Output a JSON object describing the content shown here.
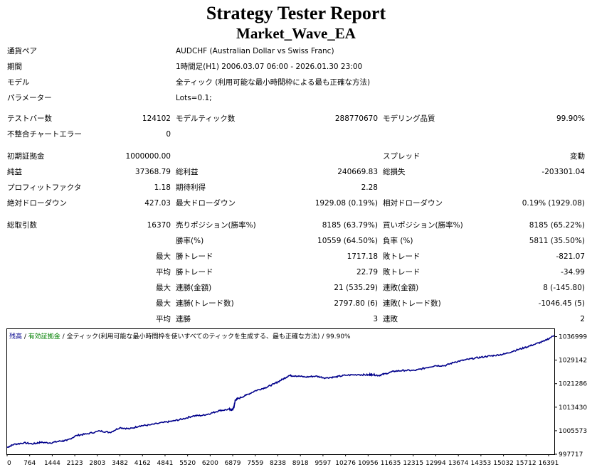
{
  "report": {
    "title": "Strategy Tester Report",
    "ea_name": "Market_Wave_EA"
  },
  "info": {
    "symbol_label": "通貨ペア",
    "symbol_value": "AUDCHF (Australian Dollar vs Swiss Franc)",
    "period_label": "期間",
    "period_value": "1時間足(H1) 2006.03.07 06:00 - 2026.01.30 23:00",
    "model_label": "モデル",
    "model_value": "全ティック (利用可能な最小時間枠による最も正確な方法)",
    "params_label": "パラメーター",
    "params_value": "Lots=0.1;"
  },
  "stats": {
    "bars_label": "テストバー数",
    "bars_value": "124102",
    "ticks_label": "モデルティック数",
    "ticks_value": "288770670",
    "quality_label": "モデリング品質",
    "quality_value": "99.90%",
    "mismatch_label": "不整合チャートエラー",
    "mismatch_value": "0",
    "deposit_label": "初期証拠金",
    "deposit_value": "1000000.00",
    "spread_label": "スプレッド",
    "spread_value": "変動",
    "net_label": "純益",
    "net_value": "37368.79",
    "gross_profit_label": "総利益",
    "gross_profit_value": "240669.83",
    "gross_loss_label": "総損失",
    "gross_loss_value": "-203301.04",
    "pf_label": "プロフィットファクタ",
    "pf_value": "1.18",
    "payoff_label": "期待利得",
    "payoff_value": "2.28",
    "abs_dd_label": "絶対ドローダウン",
    "abs_dd_value": "427.03",
    "max_dd_label": "最大ドローダウン",
    "max_dd_value": "1929.08 (0.19%)",
    "rel_dd_label": "相対ドローダウン",
    "rel_dd_value": "0.19% (1929.08)",
    "trades_label": "総取引数",
    "trades_value": "16370",
    "short_label": "売りポジション(勝率%)",
    "short_value": "8185 (63.79%)",
    "long_label": "買いポジション(勝率%)",
    "long_value": "8185 (65.22%)",
    "win_rate_label": "勝率(%)",
    "win_rate_value": "10559 (64.50%)",
    "loss_rate_label": "負率 (%)",
    "loss_rate_value": "5811 (35.50%)",
    "max_prefix": "最大",
    "avg_prefix": "平均",
    "largest_win_label": "勝トレード",
    "largest_win_value": "1717.18",
    "largest_loss_label": "敗トレード",
    "largest_loss_value": "-821.07",
    "avg_win_label": "勝トレード",
    "avg_win_value": "22.79",
    "avg_loss_label": "敗トレード",
    "avg_loss_value": "-34.99",
    "max_consec_win_label": "連勝(金額)",
    "max_consec_win_value": "21 (535.29)",
    "max_consec_loss_label": "連敗(金額)",
    "max_consec_loss_value": "8 (-145.80)",
    "max_consec_profit_label": "連勝(トレード数)",
    "max_consec_profit_value": "2797.80 (6)",
    "max_consec_lossamt_label": "連敗(トレード数)",
    "max_consec_lossamt_value": "-1046.45 (5)",
    "avg_consec_win_label": "連勝",
    "avg_consec_win_value": "3",
    "avg_consec_loss_label": "連敗",
    "avg_consec_loss_value": "2"
  },
  "chart_legend": {
    "balance": "残高",
    "sep1": " / ",
    "equity": "有効証拠金",
    "sep2": " / ",
    "model": "全ティック(利用可能な最小時間枠を使いすべてのティックを生成する、最も正確な方法)",
    "quality": " / 99.90%"
  },
  "chart_data": {
    "type": "line",
    "title": "",
    "xlabel": "",
    "ylabel": "",
    "xlim": [
      0,
      16500
    ],
    "ylim": [
      997717,
      1039500
    ],
    "x_ticks": [
      "0",
      "764",
      "1444",
      "2123",
      "2803",
      "3482",
      "4162",
      "4841",
      "5520",
      "6200",
      "6879",
      "7559",
      "8238",
      "8918",
      "9597",
      "10276",
      "10956",
      "11635",
      "12315",
      "12994",
      "13674",
      "14353",
      "15032",
      "15712",
      "16391"
    ],
    "y_ticks": [
      "1036999",
      "1029142",
      "1021286",
      "1013430",
      "1005573",
      "997717"
    ],
    "line_color": "#00008b",
    "series": [
      {
        "points": [
          [
            0,
            1000000
          ],
          [
            200,
            1001000
          ],
          [
            500,
            1001500
          ],
          [
            800,
            1001200
          ],
          [
            1000,
            1001700
          ],
          [
            1300,
            1001500
          ],
          [
            1600,
            1002100
          ],
          [
            1800,
            1002300
          ],
          [
            2100,
            1004000
          ],
          [
            2400,
            1004500
          ],
          [
            2800,
            1005500
          ],
          [
            3100,
            1005000
          ],
          [
            3400,
            1006600
          ],
          [
            3700,
            1006200
          ],
          [
            4000,
            1007200
          ],
          [
            4300,
            1007500
          ],
          [
            4700,
            1008300
          ],
          [
            5000,
            1008800
          ],
          [
            5300,
            1009500
          ],
          [
            5600,
            1010500
          ],
          [
            5900,
            1010700
          ],
          [
            6150,
            1011400
          ],
          [
            6400,
            1012300
          ],
          [
            6700,
            1012700
          ],
          [
            6800,
            1012500
          ],
          [
            6850,
            1014000
          ],
          [
            6880,
            1015800
          ],
          [
            6950,
            1016200
          ],
          [
            7200,
            1017400
          ],
          [
            7500,
            1019000
          ],
          [
            7800,
            1020000
          ],
          [
            8050,
            1021200
          ],
          [
            8300,
            1022700
          ],
          [
            8500,
            1024000
          ],
          [
            8700,
            1023900
          ],
          [
            9000,
            1023500
          ],
          [
            9300,
            1023800
          ],
          [
            9600,
            1023200
          ],
          [
            9900,
            1023500
          ],
          [
            10200,
            1024100
          ],
          [
            10600,
            1024300
          ],
          [
            10900,
            1024200
          ],
          [
            11000,
            1024400
          ],
          [
            11200,
            1024000
          ],
          [
            11400,
            1024600
          ],
          [
            11700,
            1025500
          ],
          [
            12000,
            1025700
          ],
          [
            12300,
            1025700
          ],
          [
            12600,
            1026500
          ],
          [
            12900,
            1027300
          ],
          [
            13200,
            1027300
          ],
          [
            13500,
            1028500
          ],
          [
            13800,
            1029200
          ],
          [
            14100,
            1029800
          ],
          [
            14400,
            1030300
          ],
          [
            14700,
            1030700
          ],
          [
            15000,
            1031200
          ],
          [
            15300,
            1032300
          ],
          [
            15600,
            1033300
          ],
          [
            15900,
            1034400
          ],
          [
            16200,
            1035500
          ],
          [
            16500,
            1037400
          ]
        ]
      }
    ]
  }
}
